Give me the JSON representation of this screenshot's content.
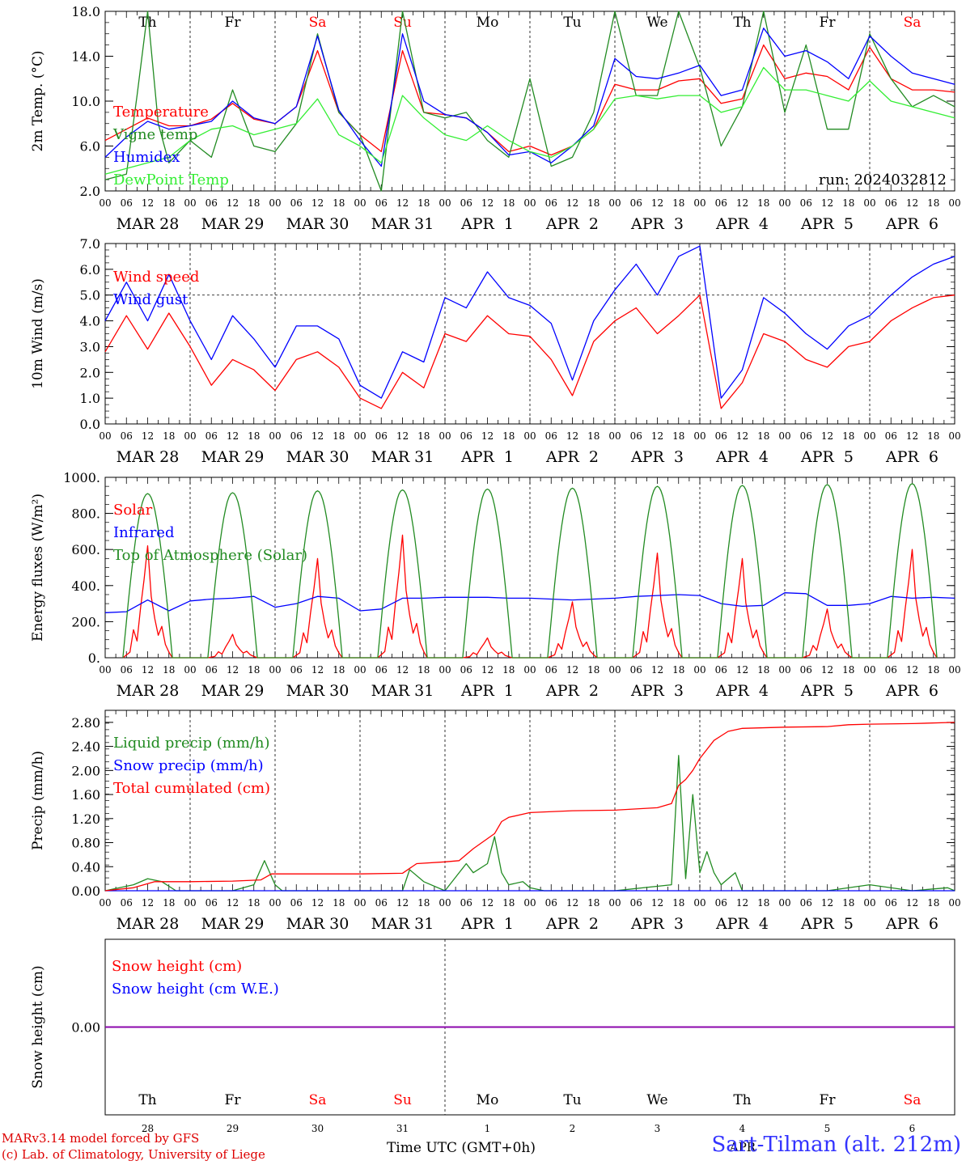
{
  "footer": {
    "model_line": "MARv3.14 model forced by GFS",
    "lab_line": "(c) Lab. of Climatology, University of Liege",
    "xaxis_title": "Time UTC (GMT+0h)",
    "station": "Sart-Tilman (alt. 212m)",
    "month_label": "APR"
  },
  "axis": {
    "hour_ticks": [
      "00",
      "06",
      "12",
      "18"
    ],
    "last_tick": "00",
    "days_weekday": [
      "Th",
      "Fr",
      "Sa",
      "Su",
      "Mo",
      "Tu",
      "We",
      "Th",
      "Fr",
      "Sa"
    ],
    "weekend_flags": [
      false,
      false,
      true,
      true,
      false,
      false,
      false,
      false,
      false,
      true
    ],
    "dates": [
      "MAR 28",
      "MAR 29",
      "MAR 30",
      "MAR 31",
      "APR  1",
      "APR  2",
      "APR  3",
      "APR  4",
      "APR  5",
      "APR  6"
    ],
    "day_numbers": [
      "28",
      "29",
      "30",
      "31",
      "1",
      "2",
      "3",
      "4",
      "5",
      "6"
    ]
  },
  "colors": {
    "red": "#ff0000",
    "blue": "#0000ff",
    "green": "#228b22",
    "lightgreen": "#33ee33",
    "purple": "#8800aa",
    "axis": "#000000"
  },
  "chart_data": [
    {
      "type": "line",
      "ylabel": "2m Temp. (°C)",
      "ylim": [
        2.0,
        18.0
      ],
      "yticks": [
        "2.0",
        "6.0",
        "10.0",
        "14.0",
        "18.0"
      ],
      "run_label": "run: 2024032812",
      "x_unit": "hours from 2024-03-28 00 UTC",
      "series": [
        {
          "name": "Temperature",
          "color": "red",
          "x": [
            0,
            6,
            12,
            18,
            24,
            30,
            36,
            42,
            48,
            54,
            60,
            66,
            72,
            78,
            84,
            90,
            96,
            102,
            108,
            114,
            120,
            126,
            132,
            138,
            144,
            150,
            156,
            162,
            168,
            174,
            180,
            186,
            192,
            198,
            204,
            210,
            216,
            222,
            228,
            234,
            240
          ],
          "values": [
            6.5,
            7.5,
            8.5,
            7.8,
            7.8,
            8.4,
            9.8,
            8.4,
            8.0,
            9.5,
            14.5,
            9.0,
            7.0,
            5.5,
            14.5,
            9.0,
            8.8,
            8.5,
            7.2,
            5.5,
            6.0,
            5.2,
            6.0,
            7.5,
            11.5,
            11.0,
            11.0,
            11.8,
            12.0,
            9.8,
            10.2,
            15.0,
            12.0,
            12.5,
            12.2,
            11.0,
            14.8,
            12.0,
            11.0,
            11.0,
            10.8
          ]
        },
        {
          "name": "Vigne temp",
          "color": "green",
          "x": [
            0,
            6,
            9,
            12,
            15,
            18,
            24,
            30,
            36,
            42,
            48,
            54,
            60,
            66,
            72,
            78,
            84,
            90,
            96,
            102,
            108,
            114,
            120,
            126,
            132,
            138,
            144,
            150,
            156,
            162,
            168,
            174,
            180,
            186,
            192,
            198,
            204,
            210,
            216,
            222,
            228,
            234,
            240
          ],
          "values": [
            3.0,
            3.5,
            10.5,
            18.0,
            8.0,
            4.5,
            6.5,
            5.0,
            11.0,
            6.0,
            5.5,
            8.0,
            16.0,
            9.0,
            7.0,
            2.0,
            18.0,
            9.0,
            8.5,
            9.0,
            6.5,
            5.0,
            12.0,
            4.2,
            5.0,
            9.0,
            18.0,
            10.5,
            10.5,
            18.0,
            13.0,
            6.0,
            9.5,
            18.0,
            9.0,
            15.0,
            7.5,
            7.5,
            16.0,
            12.0,
            9.5,
            10.5,
            9.5
          ]
        },
        {
          "name": "Humidex",
          "color": "blue",
          "x": [
            0,
            6,
            12,
            18,
            24,
            30,
            36,
            42,
            48,
            54,
            60,
            66,
            72,
            78,
            84,
            90,
            96,
            102,
            108,
            114,
            120,
            126,
            132,
            138,
            144,
            150,
            156,
            162,
            168,
            174,
            180,
            186,
            192,
            198,
            204,
            210,
            216,
            222,
            228,
            234,
            240
          ],
          "values": [
            5.0,
            6.8,
            8.2,
            7.5,
            7.8,
            8.2,
            10.0,
            8.5,
            8.0,
            9.5,
            15.8,
            9.2,
            6.5,
            4.2,
            16.0,
            10.0,
            8.8,
            8.5,
            7.2,
            5.2,
            5.5,
            4.5,
            6.0,
            7.8,
            13.8,
            12.2,
            12.0,
            12.5,
            13.2,
            10.5,
            11.0,
            16.5,
            14.0,
            14.5,
            13.5,
            12.0,
            15.8,
            14.0,
            12.5,
            12.0,
            11.5
          ]
        },
        {
          "name": "DewPoint Temp",
          "color": "lightgreen",
          "x": [
            0,
            6,
            12,
            18,
            24,
            30,
            36,
            42,
            48,
            54,
            60,
            66,
            72,
            78,
            84,
            90,
            96,
            102,
            108,
            114,
            120,
            126,
            132,
            138,
            144,
            150,
            156,
            162,
            168,
            174,
            180,
            186,
            192,
            198,
            204,
            210,
            216,
            222,
            228,
            234,
            240
          ],
          "values": [
            3.5,
            4.0,
            4.5,
            5.0,
            6.5,
            7.5,
            7.8,
            7.0,
            7.5,
            8.0,
            10.2,
            7.0,
            6.0,
            4.5,
            10.5,
            8.5,
            7.0,
            6.5,
            7.8,
            6.5,
            5.5,
            5.0,
            6.0,
            7.5,
            10.2,
            10.5,
            10.2,
            10.5,
            10.5,
            9.0,
            9.5,
            13.0,
            11.0,
            11.0,
            10.5,
            10.0,
            11.8,
            10.0,
            9.5,
            9.0,
            8.5
          ]
        }
      ]
    },
    {
      "type": "line",
      "ylabel": "10m Wind (m/s)",
      "ylim": [
        0.0,
        7.0
      ],
      "yticks": [
        "0.0",
        "1.0",
        "2.0",
        "3.0",
        "4.0",
        "5.0",
        "6.0",
        "7.0"
      ],
      "ref_line": 5.0,
      "series": [
        {
          "name": "Wind speed",
          "color": "red",
          "x": [
            0,
            6,
            12,
            18,
            24,
            30,
            36,
            42,
            48,
            54,
            60,
            66,
            72,
            78,
            84,
            90,
            96,
            102,
            108,
            114,
            120,
            126,
            132,
            138,
            144,
            150,
            156,
            162,
            168,
            174,
            180,
            186,
            192,
            198,
            204,
            210,
            216,
            222,
            228,
            234,
            240
          ],
          "values": [
            2.8,
            4.2,
            2.9,
            4.3,
            3.0,
            1.5,
            2.5,
            2.1,
            1.3,
            2.5,
            2.8,
            2.2,
            1.0,
            0.6,
            2.0,
            1.4,
            3.5,
            3.2,
            4.2,
            3.5,
            3.4,
            2.5,
            1.1,
            3.2,
            4.0,
            4.5,
            3.5,
            4.2,
            5.0,
            0.6,
            1.6,
            3.5,
            3.2,
            2.5,
            2.2,
            3.0,
            3.2,
            4.0,
            4.5,
            4.9,
            5.0
          ]
        },
        {
          "name": "Wind gust",
          "color": "blue",
          "x": [
            0,
            6,
            12,
            18,
            24,
            30,
            36,
            42,
            48,
            54,
            60,
            66,
            72,
            78,
            84,
            90,
            96,
            102,
            108,
            114,
            120,
            126,
            132,
            138,
            144,
            150,
            156,
            162,
            168,
            174,
            180,
            186,
            192,
            198,
            204,
            210,
            216,
            222,
            228,
            234,
            240
          ],
          "values": [
            4.0,
            5.5,
            4.0,
            5.8,
            4.0,
            2.5,
            4.2,
            3.3,
            2.2,
            3.8,
            3.8,
            3.3,
            1.5,
            1.0,
            2.8,
            2.4,
            4.9,
            4.5,
            5.9,
            4.9,
            4.6,
            3.9,
            1.7,
            4.0,
            5.2,
            6.2,
            5.0,
            6.5,
            6.9,
            1.0,
            2.1,
            4.9,
            4.3,
            3.5,
            2.9,
            3.8,
            4.2,
            5.0,
            5.7,
            6.2,
            6.5
          ]
        }
      ]
    },
    {
      "type": "line",
      "ylabel": "Energy fluxes (W/m²)",
      "ylim": [
        0,
        1000
      ],
      "yticks": [
        "0.",
        "200.",
        "400.",
        "600.",
        "800.",
        "1000."
      ],
      "series": [
        {
          "name": "Solar",
          "color": "red",
          "peaks": [
            620,
            130,
            550,
            680,
            110,
            310,
            580,
            550,
            270,
            600
          ]
        },
        {
          "name": "Infrared",
          "color": "blue",
          "x": [
            0,
            6,
            12,
            18,
            24,
            30,
            36,
            42,
            48,
            54,
            60,
            66,
            72,
            78,
            84,
            90,
            96,
            102,
            108,
            114,
            120,
            126,
            132,
            138,
            144,
            150,
            156,
            162,
            168,
            174,
            180,
            186,
            192,
            198,
            204,
            210,
            216,
            222,
            228,
            234,
            240
          ],
          "values": [
            250,
            255,
            320,
            260,
            315,
            325,
            330,
            340,
            280,
            300,
            340,
            330,
            260,
            270,
            330,
            330,
            335,
            335,
            335,
            330,
            330,
            325,
            320,
            325,
            330,
            340,
            345,
            350,
            345,
            300,
            285,
            290,
            360,
            355,
            290,
            290,
            300,
            340,
            330,
            335,
            330
          ]
        },
        {
          "name": "Top of Atmosphere (Solar)",
          "color": "green",
          "peaks": [
            910,
            915,
            925,
            930,
            935,
            940,
            950,
            955,
            960,
            965
          ]
        }
      ]
    },
    {
      "type": "line",
      "ylabel": "Precip (mm/h)",
      "ylim": [
        0.0,
        3.0
      ],
      "yticks": [
        "0.00",
        "0.40",
        "0.80",
        "1.20",
        "1.60",
        "2.00",
        "2.40",
        "2.80"
      ],
      "series": [
        {
          "name": "Liquid precip (mm/h)",
          "color": "green",
          "x": [
            0,
            8,
            12,
            16,
            20,
            24,
            36,
            42,
            45,
            48,
            50,
            54,
            60,
            66,
            72,
            84,
            86,
            90,
            96,
            102,
            104,
            108,
            110,
            112,
            114,
            118,
            120,
            124,
            132,
            144,
            160,
            162,
            164,
            166,
            168,
            170,
            172,
            174,
            176,
            178,
            180,
            192,
            198,
            204,
            216,
            228,
            238,
            240
          ],
          "values": [
            0,
            0.1,
            0.2,
            0.15,
            0,
            0,
            0,
            0.1,
            0.5,
            0.1,
            0,
            0,
            0,
            0,
            0,
            0,
            0.35,
            0.15,
            0,
            0.45,
            0.3,
            0.45,
            0.9,
            0.3,
            0.1,
            0.15,
            0.05,
            0,
            0,
            0,
            0.1,
            2.25,
            0.2,
            1.6,
            0.3,
            0.65,
            0.3,
            0.1,
            0.2,
            0.3,
            0,
            0,
            0,
            0,
            0.1,
            0,
            0.05,
            0
          ]
        },
        {
          "name": "Snow precip (mm/h)",
          "color": "blue",
          "x": [
            0,
            240
          ],
          "values": [
            0,
            0
          ]
        },
        {
          "name": "Total cumulated (cm)",
          "color": "red",
          "x": [
            0,
            8,
            14,
            24,
            36,
            44,
            47,
            48,
            60,
            72,
            84,
            88,
            96,
            100,
            104,
            110,
            112,
            114,
            120,
            132,
            144,
            156,
            160,
            162,
            164,
            166,
            168,
            172,
            176,
            180,
            192,
            204,
            210,
            216,
            228,
            240
          ],
          "values": [
            0,
            0.05,
            0.15,
            0.15,
            0.16,
            0.18,
            0.28,
            0.28,
            0.28,
            0.28,
            0.29,
            0.45,
            0.48,
            0.5,
            0.7,
            0.95,
            1.15,
            1.22,
            1.3,
            1.33,
            1.34,
            1.38,
            1.45,
            1.75,
            1.85,
            2.0,
            2.2,
            2.5,
            2.65,
            2.7,
            2.72,
            2.73,
            2.76,
            2.77,
            2.78,
            2.8
          ]
        }
      ]
    },
    {
      "type": "line",
      "ylabel": "Snow height (cm)",
      "ylim": [
        -1,
        1
      ],
      "yticks": [
        "0.00"
      ],
      "series": [
        {
          "name": "Snow height (cm)",
          "color": "red",
          "x": [
            0,
            240
          ],
          "values": [
            0,
            0
          ]
        },
        {
          "name": "Snow height (cm W.E.)",
          "color": "blue",
          "x": [
            0,
            240
          ],
          "values": [
            0,
            0
          ]
        }
      ]
    }
  ]
}
